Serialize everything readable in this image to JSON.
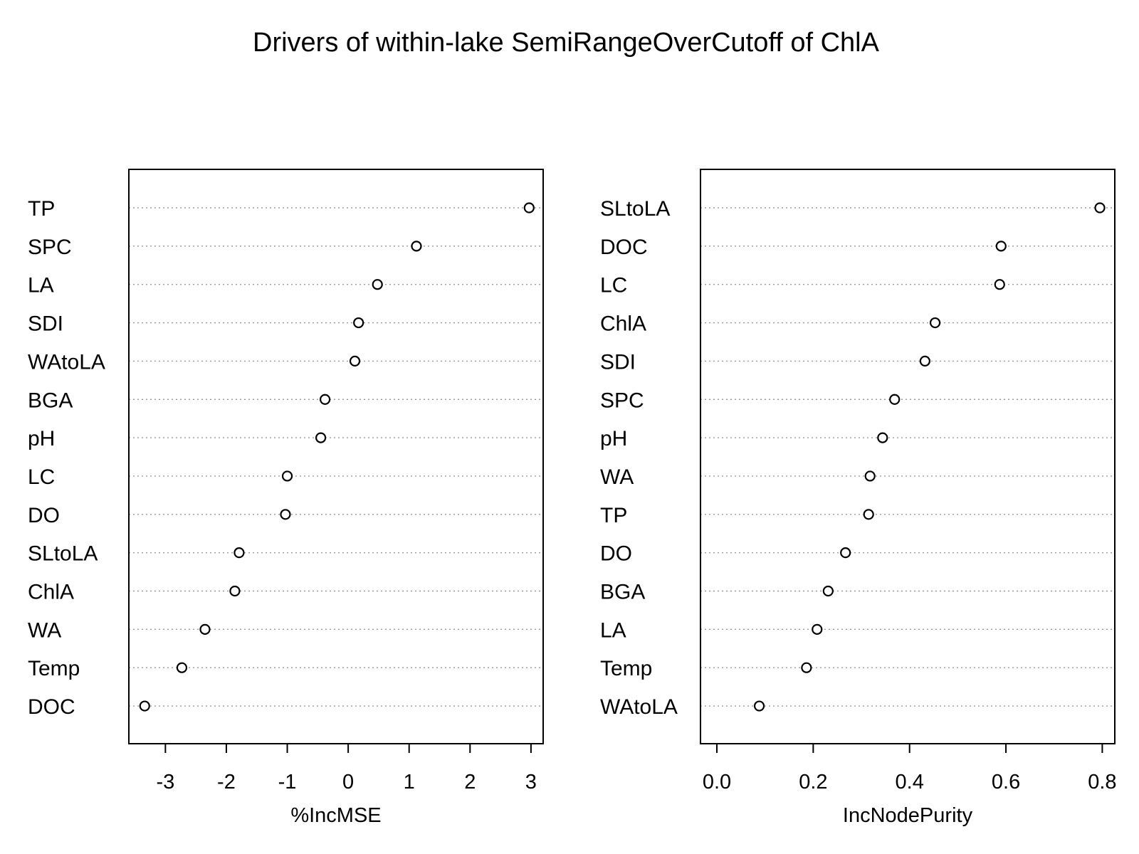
{
  "chart_data": [
    {
      "type": "scatter",
      "title": "Drivers of within-lake SemiRangeOverCutoff of ChlA",
      "xlabel": "%IncMSE",
      "ylabel": "",
      "xlim": [
        -3.6,
        3.2
      ],
      "xticks": [
        -3,
        -2,
        -1,
        0,
        1,
        2,
        3
      ],
      "xtick_labels": [
        "-3",
        "-2",
        "-1",
        "0",
        "1",
        "2",
        "3"
      ],
      "grid": "dotted horizontal guide lines",
      "categories": [
        "TP",
        "SPC",
        "LA",
        "SDI",
        "WAtoLA",
        "BGA",
        "pH",
        "LC",
        "DO",
        "SLtoLA",
        "ChlA",
        "WA",
        "Temp",
        "DOC"
      ],
      "values": [
        2.97,
        1.12,
        0.48,
        0.17,
        0.11,
        -0.38,
        -0.45,
        -1.0,
        -1.03,
        -1.79,
        -1.86,
        -2.35,
        -2.73,
        -3.34
      ]
    },
    {
      "type": "scatter",
      "xlabel": "IncNodePurity",
      "ylabel": "",
      "xlim": [
        -0.034,
        0.826
      ],
      "xticks": [
        0.0,
        0.2,
        0.4,
        0.6,
        0.8
      ],
      "xtick_labels": [
        "0.0",
        "0.2",
        "0.4",
        "0.6",
        "0.8"
      ],
      "grid": "dotted horizontal guide lines",
      "categories": [
        "SLtoLA",
        "DOC",
        "LC",
        "ChlA",
        "SDI",
        "SPC",
        "pH",
        "WA",
        "TP",
        "DO",
        "BGA",
        "LA",
        "Temp",
        "WAtoLA"
      ],
      "values": [
        0.795,
        0.59,
        0.587,
        0.453,
        0.432,
        0.369,
        0.344,
        0.318,
        0.315,
        0.267,
        0.231,
        0.208,
        0.186,
        0.088
      ]
    }
  ]
}
